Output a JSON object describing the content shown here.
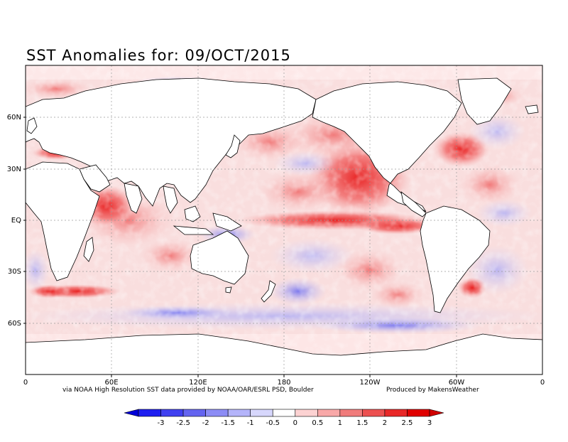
{
  "title": "SST Anomalies for: 09/OCT/2015",
  "credits": {
    "left": "via NOAA High Resolution SST data provided by NOAA/OAR/ESRL PSD, Boulder",
    "right": "Produced by MakensWeather"
  },
  "map": {
    "lon_ticks": [
      "0",
      "60E",
      "120E",
      "180",
      "120W",
      "60W",
      "0"
    ],
    "lat_ticks": [
      "60N",
      "30N",
      "EQ",
      "30S",
      "60S"
    ],
    "colors": {
      "land": "#ffffff",
      "coast": "#000000",
      "grid": "#9a9a9a"
    }
  },
  "legend": {
    "labels": [
      "-3",
      "-2.5",
      "-2",
      "-1.5",
      "-1",
      "-0.5",
      "0",
      "0.5",
      "1",
      "1.5",
      "2",
      "2.5",
      "3"
    ],
    "colors": [
      "#1e1ef0",
      "#4040f0",
      "#6464f0",
      "#8c8cf5",
      "#b4b4fa",
      "#d7d7fc",
      "#ffffff",
      "#fcd2d2",
      "#f8a8a8",
      "#f07c7c",
      "#ec5050",
      "#e82828",
      "#e00000"
    ]
  }
}
